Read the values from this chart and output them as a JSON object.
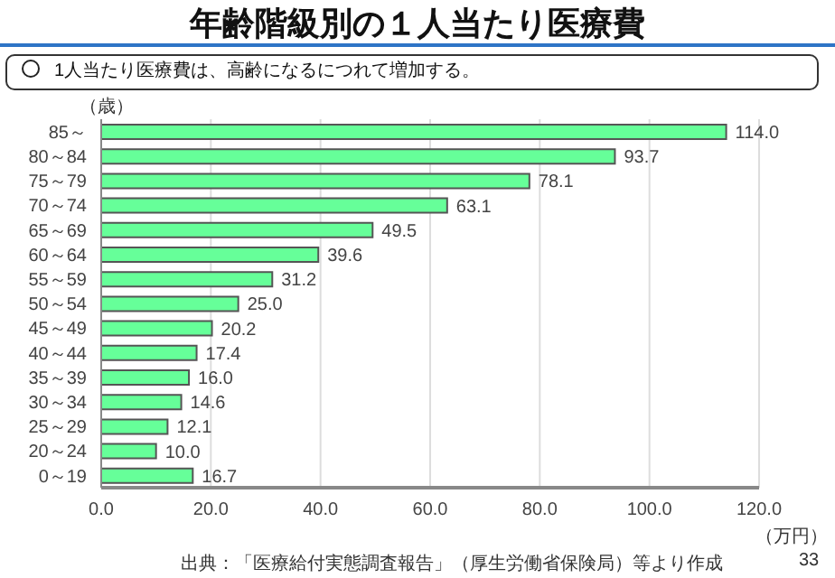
{
  "chart_data": {
    "type": "bar",
    "orientation": "horizontal",
    "title": "年齢階級別の１人当たり医療費",
    "subtitle": "1人当たり医療費は、高齢になるにつれて増加する。",
    "ylabel": "（歳）",
    "xlabel": "（万円）",
    "categories": [
      "85～",
      "80～84",
      "75～79",
      "70～74",
      "65～69",
      "60～64",
      "55～59",
      "50～54",
      "45～49",
      "40～44",
      "35～39",
      "30～34",
      "25～29",
      "20～24",
      "0～19"
    ],
    "values": [
      114.0,
      93.7,
      78.1,
      63.1,
      49.5,
      39.6,
      31.2,
      25.0,
      20.2,
      17.4,
      16.0,
      14.6,
      12.1,
      10.0,
      16.7
    ],
    "value_labels": [
      "114.0",
      "93.7",
      "78.1",
      "63.1",
      "49.5",
      "39.6",
      "31.2",
      "25.0",
      "20.2",
      "17.4",
      "16.0",
      "14.6",
      "12.1",
      "10.0",
      "16.7"
    ],
    "color": "#66ff99",
    "xlim": [
      0,
      120
    ],
    "xticks": [
      {
        "value": 0,
        "label": "0.0"
      },
      {
        "value": 20,
        "label": "20.0"
      },
      {
        "value": 40,
        "label": "40.0"
      },
      {
        "value": 60,
        "label": "60.0"
      },
      {
        "value": 80,
        "label": "80.0"
      },
      {
        "value": 100,
        "label": "100.0"
      },
      {
        "value": 120,
        "label": "120.0"
      }
    ],
    "grid": "x",
    "annotations": [
      "出典：「医療給付実態調査報告」（厚生労働省保険局）等より作成",
      "33"
    ]
  }
}
